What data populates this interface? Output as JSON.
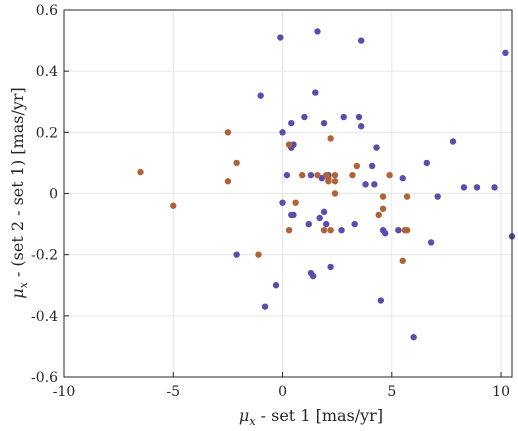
{
  "chart_data": {
    "type": "scatter",
    "title": "",
    "xlabel_symbol": "μ",
    "xlabel_subscript": "x",
    "xlabel_rest": " - set 1 [mas/yr]",
    "ylabel_symbol": "μ",
    "ylabel_subscript": "x",
    "ylabel_rest": " - (set 2 - set 1) [mas/yr]",
    "xlim": [
      -10,
      10.5
    ],
    "ylim": [
      -0.6,
      0.6
    ],
    "xticks": [
      -10,
      -5,
      0,
      5,
      10
    ],
    "xtick_labels": [
      "-10",
      "-5",
      "0",
      "5",
      "10"
    ],
    "yticks": [
      -0.6,
      -0.4,
      -0.2,
      0,
      0.2,
      0.4,
      0.6
    ],
    "ytick_labels": [
      "-0.6",
      "-0.4",
      "-0.2",
      "0",
      "0.2",
      "0.4",
      "0.6"
    ],
    "grid": true,
    "colors": {
      "series_1": "#5b4cad",
      "series_2": "#b06238",
      "axis": "#262626",
      "grid": "#e6e6e6"
    },
    "series": [
      {
        "color": "#5b4cad",
        "points": [
          [
            -0.1,
            0.51
          ],
          [
            1.6,
            0.53
          ],
          [
            3.6,
            0.5
          ],
          [
            10.2,
            0.46
          ],
          [
            -1.0,
            0.32
          ],
          [
            1.5,
            0.33
          ],
          [
            2.8,
            0.25
          ],
          [
            3.5,
            0.25
          ],
          [
            1.0,
            0.25
          ],
          [
            1.9,
            0.23
          ],
          [
            0.4,
            0.23
          ],
          [
            3.6,
            0.22
          ],
          [
            0.0,
            0.2
          ],
          [
            4.3,
            0.15
          ],
          [
            7.8,
            0.17
          ],
          [
            0.5,
            0.16
          ],
          [
            0.4,
            0.15
          ],
          [
            6.6,
            0.1
          ],
          [
            4.1,
            0.09
          ],
          [
            0.2,
            0.06
          ],
          [
            1.3,
            0.06
          ],
          [
            1.8,
            0.05
          ],
          [
            2.1,
            0.06
          ],
          [
            5.5,
            0.05
          ],
          [
            8.3,
            0.02
          ],
          [
            9.7,
            0.02
          ],
          [
            8.9,
            0.02
          ],
          [
            3.8,
            0.03
          ],
          [
            4.2,
            0.03
          ],
          [
            7.1,
            -0.01
          ],
          [
            1.9,
            -0.06
          ],
          [
            0.0,
            -0.03
          ],
          [
            1.7,
            -0.08
          ],
          [
            0.5,
            -0.07
          ],
          [
            0.4,
            -0.07
          ],
          [
            2.0,
            -0.1
          ],
          [
            3.3,
            -0.1
          ],
          [
            1.2,
            -0.1
          ],
          [
            2.7,
            -0.12
          ],
          [
            4.6,
            -0.12
          ],
          [
            5.3,
            -0.12
          ],
          [
            4.7,
            -0.13
          ],
          [
            6.8,
            -0.16
          ],
          [
            10.5,
            -0.14
          ],
          [
            -2.1,
            -0.2
          ],
          [
            2.2,
            -0.24
          ],
          [
            1.3,
            -0.26
          ],
          [
            1.4,
            -0.27
          ],
          [
            -0.3,
            -0.3
          ],
          [
            4.5,
            -0.35
          ],
          [
            -0.8,
            -0.37
          ],
          [
            6.0,
            -0.47
          ]
        ]
      },
      {
        "color": "#b06238",
        "points": [
          [
            -6.5,
            0.07
          ],
          [
            -5.0,
            -0.04
          ],
          [
            -2.5,
            0.2
          ],
          [
            -2.5,
            0.04
          ],
          [
            -2.1,
            0.1
          ],
          [
            -1.1,
            -0.2
          ],
          [
            0.3,
            0.16
          ],
          [
            0.3,
            -0.12
          ],
          [
            0.6,
            -0.03
          ],
          [
            0.9,
            0.06
          ],
          [
            1.6,
            0.06
          ],
          [
            2.0,
            0.06
          ],
          [
            2.1,
            0.05
          ],
          [
            2.1,
            0.04
          ],
          [
            2.2,
            0.18
          ],
          [
            2.4,
            0.04
          ],
          [
            2.4,
            0.06
          ],
          [
            2.4,
            0.0
          ],
          [
            1.9,
            -0.12
          ],
          [
            2.2,
            -0.12
          ],
          [
            3.4,
            0.09
          ],
          [
            3.2,
            0.06
          ],
          [
            4.4,
            -0.07
          ],
          [
            4.6,
            -0.01
          ],
          [
            4.6,
            -0.05
          ],
          [
            4.9,
            0.06
          ],
          [
            5.6,
            -0.12
          ],
          [
            5.7,
            -0.12
          ],
          [
            5.7,
            -0.01
          ],
          [
            5.5,
            -0.22
          ]
        ]
      }
    ]
  }
}
